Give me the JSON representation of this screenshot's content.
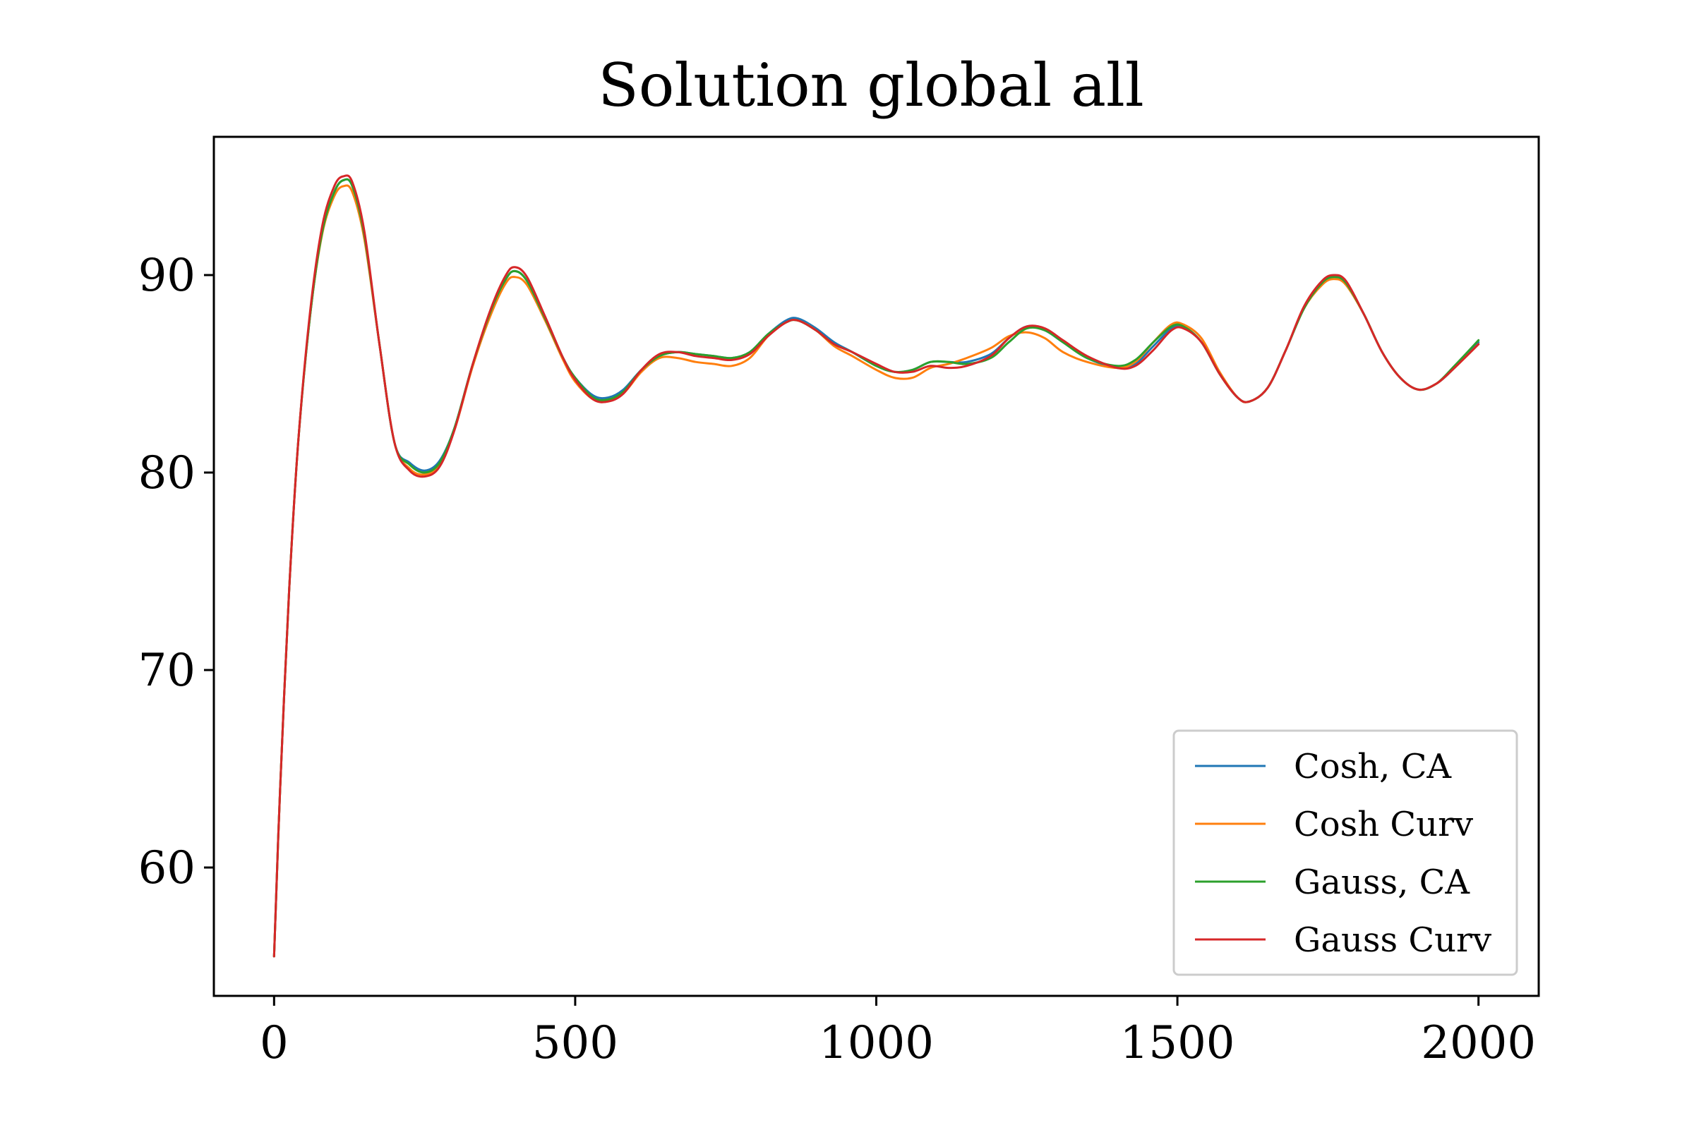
{
  "chart_data": {
    "type": "line",
    "title": "Solution global all",
    "xlabel": "",
    "ylabel": "",
    "xlim": [
      -100,
      2100
    ],
    "ylim": [
      53.5,
      97
    ],
    "xticks": [
      0,
      500,
      1000,
      1500,
      2000
    ],
    "xtick_labels": [
      "0",
      "500",
      "1000",
      "1500",
      "2000"
    ],
    "yticks": [
      60,
      70,
      80,
      90
    ],
    "ytick_labels": [
      "60",
      "70",
      "80",
      "90"
    ],
    "grid": false,
    "legend_position": "lower right",
    "series": [
      {
        "name": "Cosh, CA",
        "color": "#1f77b4",
        "points": [
          [
            0,
            55.5
          ],
          [
            10,
            64
          ],
          [
            25,
            74
          ],
          [
            40,
            81.5
          ],
          [
            60,
            88
          ],
          [
            80,
            92.2
          ],
          [
            100,
            94.2
          ],
          [
            115,
            94.8
          ],
          [
            130,
            94.5
          ],
          [
            150,
            92
          ],
          [
            175,
            86.5
          ],
          [
            200,
            81.5
          ],
          [
            225,
            80.5
          ],
          [
            250,
            80.1
          ],
          [
            275,
            80.6
          ],
          [
            300,
            82.3
          ],
          [
            330,
            85.5
          ],
          [
            360,
            88.2
          ],
          [
            385,
            89.8
          ],
          [
            400,
            90.2
          ],
          [
            420,
            89.7
          ],
          [
            450,
            87.8
          ],
          [
            480,
            85.8
          ],
          [
            500,
            84.8
          ],
          [
            530,
            83.9
          ],
          [
            555,
            83.8
          ],
          [
            580,
            84.2
          ],
          [
            610,
            85.2
          ],
          [
            640,
            85.9
          ],
          [
            670,
            86.1
          ],
          [
            700,
            86
          ],
          [
            730,
            85.9
          ],
          [
            760,
            85.8
          ],
          [
            790,
            86.1
          ],
          [
            820,
            87
          ],
          [
            850,
            87.7
          ],
          [
            870,
            87.8
          ],
          [
            900,
            87.3
          ],
          [
            930,
            86.6
          ],
          [
            960,
            86.1
          ],
          [
            1000,
            85.4
          ],
          [
            1030,
            85.1
          ],
          [
            1060,
            85.2
          ],
          [
            1090,
            85.6
          ],
          [
            1120,
            85.6
          ],
          [
            1150,
            85.6
          ],
          [
            1190,
            86
          ],
          [
            1220,
            86.8
          ],
          [
            1250,
            87.4
          ],
          [
            1280,
            87.2
          ],
          [
            1310,
            86.6
          ],
          [
            1350,
            85.8
          ],
          [
            1400,
            85.3
          ],
          [
            1430,
            85.5
          ],
          [
            1460,
            86.4
          ],
          [
            1490,
            87.3
          ],
          [
            1510,
            87.4
          ],
          [
            1540,
            86.6
          ],
          [
            1570,
            85
          ],
          [
            1600,
            83.8
          ],
          [
            1620,
            83.6
          ],
          [
            1650,
            84.3
          ],
          [
            1680,
            86.2
          ],
          [
            1710,
            88.3
          ],
          [
            1740,
            89.6
          ],
          [
            1760,
            89.9
          ],
          [
            1780,
            89.6
          ],
          [
            1810,
            88
          ],
          [
            1840,
            86.1
          ],
          [
            1870,
            84.8
          ],
          [
            1900,
            84.2
          ],
          [
            1930,
            84.5
          ],
          [
            1960,
            85.3
          ],
          [
            2000,
            86.6
          ]
        ]
      },
      {
        "name": "Cosh Curv",
        "color": "#ff7f0e",
        "points": [
          [
            0,
            55.5
          ],
          [
            10,
            64
          ],
          [
            25,
            74
          ],
          [
            40,
            81.5
          ],
          [
            60,
            88
          ],
          [
            80,
            92.1
          ],
          [
            100,
            94
          ],
          [
            115,
            94.5
          ],
          [
            130,
            94.2
          ],
          [
            150,
            91.8
          ],
          [
            175,
            86.5
          ],
          [
            200,
            81.5
          ],
          [
            225,
            80.2
          ],
          [
            250,
            79.9
          ],
          [
            275,
            80.4
          ],
          [
            300,
            82.2
          ],
          [
            330,
            85.4
          ],
          [
            360,
            88
          ],
          [
            385,
            89.6
          ],
          [
            400,
            89.9
          ],
          [
            420,
            89.5
          ],
          [
            450,
            87.7
          ],
          [
            480,
            85.7
          ],
          [
            500,
            84.6
          ],
          [
            530,
            83.7
          ],
          [
            555,
            83.6
          ],
          [
            580,
            84
          ],
          [
            610,
            85.1
          ],
          [
            640,
            85.8
          ],
          [
            670,
            85.8
          ],
          [
            700,
            85.6
          ],
          [
            730,
            85.5
          ],
          [
            760,
            85.4
          ],
          [
            790,
            85.8
          ],
          [
            820,
            86.9
          ],
          [
            850,
            87.6
          ],
          [
            870,
            87.7
          ],
          [
            900,
            87.2
          ],
          [
            930,
            86.4
          ],
          [
            960,
            85.9
          ],
          [
            1000,
            85.2
          ],
          [
            1030,
            84.8
          ],
          [
            1060,
            84.8
          ],
          [
            1090,
            85.3
          ],
          [
            1120,
            85.5
          ],
          [
            1150,
            85.8
          ],
          [
            1190,
            86.3
          ],
          [
            1220,
            86.9
          ],
          [
            1250,
            87.1
          ],
          [
            1280,
            86.8
          ],
          [
            1310,
            86.1
          ],
          [
            1350,
            85.6
          ],
          [
            1400,
            85.3
          ],
          [
            1430,
            85.6
          ],
          [
            1460,
            86.6
          ],
          [
            1490,
            87.5
          ],
          [
            1510,
            87.5
          ],
          [
            1540,
            86.8
          ],
          [
            1570,
            85.1
          ],
          [
            1600,
            83.8
          ],
          [
            1620,
            83.6
          ],
          [
            1650,
            84.3
          ],
          [
            1680,
            86.2
          ],
          [
            1710,
            88.3
          ],
          [
            1740,
            89.5
          ],
          [
            1760,
            89.8
          ],
          [
            1780,
            89.5
          ],
          [
            1810,
            88
          ],
          [
            1840,
            86.1
          ],
          [
            1870,
            84.8
          ],
          [
            1900,
            84.2
          ],
          [
            1930,
            84.5
          ],
          [
            1960,
            85.3
          ],
          [
            2000,
            86.5
          ]
        ]
      },
      {
        "name": "Gauss, CA",
        "color": "#2ca02c",
        "points": [
          [
            0,
            55.5
          ],
          [
            10,
            64
          ],
          [
            25,
            74
          ],
          [
            40,
            81.5
          ],
          [
            60,
            88
          ],
          [
            80,
            92.2
          ],
          [
            100,
            94.2
          ],
          [
            115,
            94.8
          ],
          [
            130,
            94.5
          ],
          [
            150,
            92
          ],
          [
            175,
            86.5
          ],
          [
            200,
            81.5
          ],
          [
            225,
            80.4
          ],
          [
            250,
            80
          ],
          [
            275,
            80.5
          ],
          [
            300,
            82.3
          ],
          [
            330,
            85.5
          ],
          [
            360,
            88.2
          ],
          [
            385,
            89.8
          ],
          [
            400,
            90.2
          ],
          [
            420,
            89.7
          ],
          [
            450,
            87.8
          ],
          [
            480,
            85.8
          ],
          [
            500,
            84.8
          ],
          [
            530,
            83.8
          ],
          [
            555,
            83.7
          ],
          [
            580,
            84.1
          ],
          [
            610,
            85.2
          ],
          [
            640,
            85.9
          ],
          [
            670,
            86.1
          ],
          [
            700,
            86
          ],
          [
            730,
            85.9
          ],
          [
            760,
            85.8
          ],
          [
            790,
            86.1
          ],
          [
            820,
            87
          ],
          [
            850,
            87.6
          ],
          [
            870,
            87.7
          ],
          [
            900,
            87.2
          ],
          [
            930,
            86.5
          ],
          [
            960,
            86.1
          ],
          [
            1000,
            85.4
          ],
          [
            1030,
            85.1
          ],
          [
            1060,
            85.2
          ],
          [
            1090,
            85.6
          ],
          [
            1120,
            85.6
          ],
          [
            1150,
            85.5
          ],
          [
            1190,
            85.8
          ],
          [
            1220,
            86.6
          ],
          [
            1250,
            87.3
          ],
          [
            1280,
            87.2
          ],
          [
            1310,
            86.6
          ],
          [
            1350,
            85.8
          ],
          [
            1400,
            85.4
          ],
          [
            1430,
            85.7
          ],
          [
            1460,
            86.6
          ],
          [
            1490,
            87.4
          ],
          [
            1510,
            87.4
          ],
          [
            1540,
            86.6
          ],
          [
            1570,
            85
          ],
          [
            1600,
            83.8
          ],
          [
            1620,
            83.6
          ],
          [
            1650,
            84.3
          ],
          [
            1680,
            86.2
          ],
          [
            1710,
            88.3
          ],
          [
            1740,
            89.6
          ],
          [
            1760,
            89.9
          ],
          [
            1780,
            89.6
          ],
          [
            1810,
            88
          ],
          [
            1840,
            86.1
          ],
          [
            1870,
            84.8
          ],
          [
            1900,
            84.2
          ],
          [
            1930,
            84.5
          ],
          [
            1960,
            85.4
          ],
          [
            2000,
            86.7
          ]
        ]
      },
      {
        "name": "Gauss Curv",
        "color": "#d62728",
        "points": [
          [
            0,
            55.5
          ],
          [
            10,
            64
          ],
          [
            25,
            74
          ],
          [
            40,
            81.5
          ],
          [
            60,
            88.2
          ],
          [
            80,
            92.5
          ],
          [
            100,
            94.5
          ],
          [
            115,
            95
          ],
          [
            130,
            94.7
          ],
          [
            150,
            92.2
          ],
          [
            175,
            86.5
          ],
          [
            200,
            81.5
          ],
          [
            225,
            80.1
          ],
          [
            250,
            79.8
          ],
          [
            275,
            80.3
          ],
          [
            300,
            82.2
          ],
          [
            330,
            85.5
          ],
          [
            360,
            88.3
          ],
          [
            385,
            90
          ],
          [
            400,
            90.4
          ],
          [
            420,
            89.9
          ],
          [
            450,
            87.9
          ],
          [
            480,
            85.8
          ],
          [
            500,
            84.7
          ],
          [
            530,
            83.7
          ],
          [
            555,
            83.6
          ],
          [
            580,
            84
          ],
          [
            610,
            85.2
          ],
          [
            640,
            86
          ],
          [
            670,
            86.1
          ],
          [
            700,
            85.9
          ],
          [
            730,
            85.8
          ],
          [
            760,
            85.7
          ],
          [
            790,
            86
          ],
          [
            820,
            86.9
          ],
          [
            850,
            87.6
          ],
          [
            870,
            87.7
          ],
          [
            900,
            87.2
          ],
          [
            930,
            86.5
          ],
          [
            960,
            86.1
          ],
          [
            1000,
            85.5
          ],
          [
            1030,
            85.1
          ],
          [
            1060,
            85.1
          ],
          [
            1090,
            85.4
          ],
          [
            1120,
            85.3
          ],
          [
            1150,
            85.4
          ],
          [
            1190,
            85.9
          ],
          [
            1220,
            86.8
          ],
          [
            1250,
            87.4
          ],
          [
            1280,
            87.3
          ],
          [
            1310,
            86.7
          ],
          [
            1350,
            85.9
          ],
          [
            1400,
            85.3
          ],
          [
            1430,
            85.4
          ],
          [
            1460,
            86.2
          ],
          [
            1490,
            87.2
          ],
          [
            1510,
            87.3
          ],
          [
            1540,
            86.6
          ],
          [
            1570,
            85
          ],
          [
            1600,
            83.8
          ],
          [
            1620,
            83.6
          ],
          [
            1650,
            84.3
          ],
          [
            1680,
            86.2
          ],
          [
            1710,
            88.4
          ],
          [
            1740,
            89.7
          ],
          [
            1760,
            90
          ],
          [
            1780,
            89.7
          ],
          [
            1810,
            88
          ],
          [
            1840,
            86.1
          ],
          [
            1870,
            84.8
          ],
          [
            1900,
            84.2
          ],
          [
            1930,
            84.5
          ],
          [
            1960,
            85.3
          ],
          [
            2000,
            86.5
          ]
        ]
      }
    ]
  }
}
